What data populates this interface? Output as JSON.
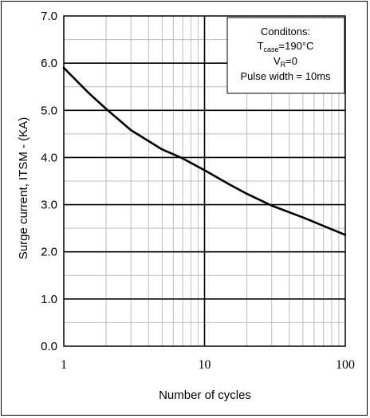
{
  "chart_data": {
    "type": "line",
    "title": "",
    "xlabel": "Number of cycles",
    "ylabel": "Surge current, ITSM - (KA)",
    "x_scale": "log",
    "xlim": [
      1,
      100
    ],
    "ylim": [
      0,
      7
    ],
    "x_tick_labels": [
      "1",
      "10",
      "100"
    ],
    "y_tick_labels": [
      "0.0",
      "1.0",
      "2.0",
      "3.0",
      "4.0",
      "5.0",
      "6.0",
      "7.0"
    ],
    "grid": true,
    "series": [
      {
        "color": "#000000",
        "x": [
          1,
          1.5,
          2,
          3,
          5,
          7,
          10,
          15,
          20,
          30,
          50,
          70,
          100
        ],
        "y": [
          5.9,
          5.37,
          5.03,
          4.58,
          4.17,
          3.98,
          3.73,
          3.43,
          3.23,
          2.98,
          2.73,
          2.55,
          2.36
        ]
      }
    ],
    "annotation": {
      "heading": "Conditons:",
      "line1_prefix": "T",
      "line1_sub": "case",
      "line1_suffix": "=190°C",
      "line2_prefix": "V",
      "line2_sub": "R",
      "line2_suffix": "=0",
      "line3": "Pulse width = 10ms"
    }
  }
}
